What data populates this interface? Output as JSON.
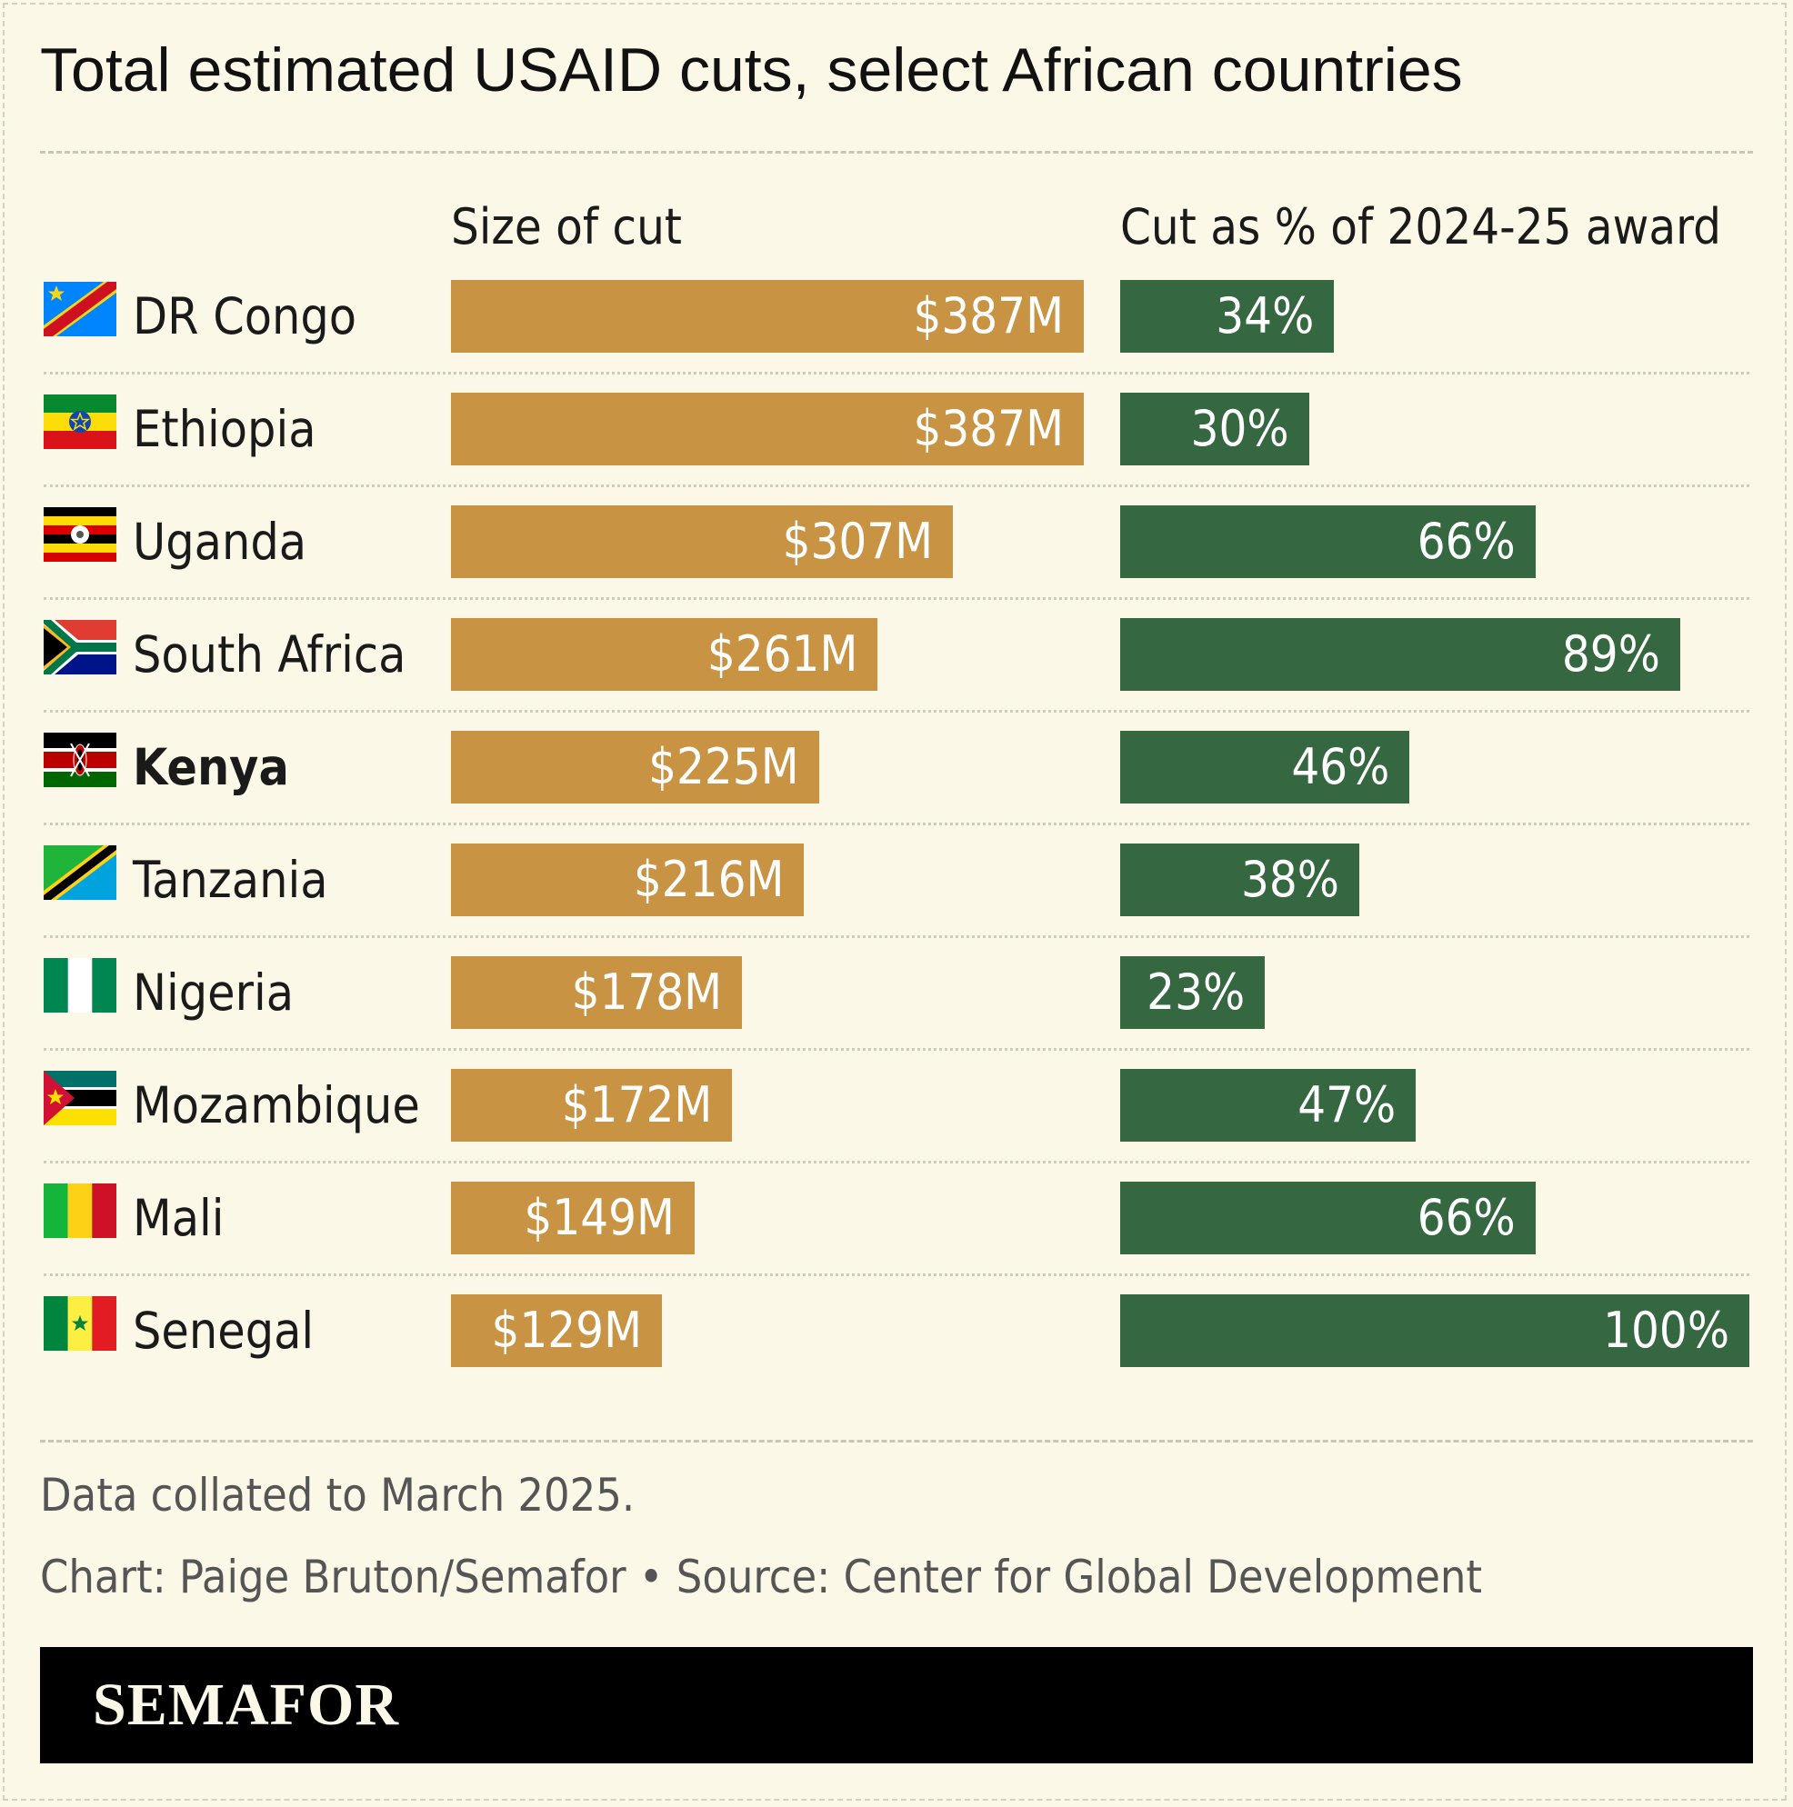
{
  "title": "Total estimated USAID cuts, select African countries",
  "column_headers": {
    "cut": "Size of cut",
    "pct": "Cut as % of 2024-25 award"
  },
  "colors": {
    "cut_bar": "#c89443",
    "pct_bar": "#356841",
    "background": "#fbf8e7"
  },
  "chart_data": {
    "type": "bar",
    "orientation": "horizontal",
    "categories": [
      "DR Congo",
      "Ethiopia",
      "Uganda",
      "South Africa",
      "Kenya",
      "Tanzania",
      "Nigeria",
      "Mozambique",
      "Mali",
      "Senegal"
    ],
    "highlighted_category": "Kenya",
    "series": [
      {
        "name": "Size of cut",
        "unit": "$M",
        "values": [
          387,
          387,
          307,
          261,
          225,
          216,
          178,
          172,
          149,
          129
        ],
        "labels": [
          "$387M",
          "$387M",
          "$307M",
          "$261M",
          "$225M",
          "$216M",
          "$178M",
          "$172M",
          "$149M",
          "$129M"
        ]
      },
      {
        "name": "Cut as % of 2024-25 award",
        "unit": "%",
        "values": [
          34,
          30,
          66,
          89,
          46,
          38,
          23,
          47,
          66,
          100
        ],
        "labels": [
          "34%",
          "30%",
          "66%",
          "89%",
          "46%",
          "38%",
          "23%",
          "47%",
          "66%",
          "100%"
        ]
      }
    ],
    "xlim_cut": [
      0,
      387
    ],
    "xlim_pct": [
      0,
      100
    ],
    "grid": false,
    "legend": "none"
  },
  "flags": [
    "drc-flag-icon",
    "ethiopia-flag-icon",
    "uganda-flag-icon",
    "south-africa-flag-icon",
    "kenya-flag-icon",
    "tanzania-flag-icon",
    "nigeria-flag-icon",
    "mozambique-flag-icon",
    "mali-flag-icon",
    "senegal-flag-icon"
  ],
  "notes": {
    "data_note": "Data collated to March 2025.",
    "credit": "Chart: Paige Bruton/Semafor • Source: Center for Global Development"
  },
  "footer": {
    "logo": "SEMAFOR"
  }
}
